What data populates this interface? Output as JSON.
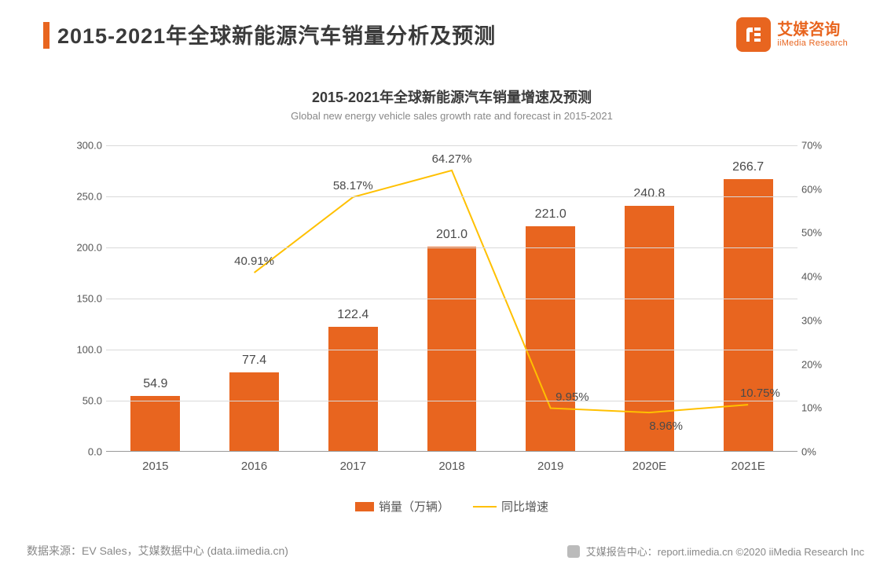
{
  "header": {
    "title": "2015-2021年全球新能源汽车销量分析及预测",
    "logo_cn": "艾媒咨询",
    "logo_en": "iiMedia Research"
  },
  "chart": {
    "type": "bar+line",
    "title": "2015-2021年全球新能源汽车销量增速及预测",
    "subtitle": "Global new energy vehicle sales growth rate and forecast in 2015-2021",
    "categories": [
      "2015",
      "2016",
      "2017",
      "2018",
      "2019",
      "2020E",
      "2021E"
    ],
    "bar_series": {
      "label": "销量（万辆）",
      "values": [
        54.9,
        77.4,
        122.4,
        201.0,
        221.0,
        240.8,
        266.7
      ],
      "value_labels": [
        "54.9",
        "77.4",
        "122.4",
        "201.0",
        "221.0",
        "240.8",
        "266.7"
      ],
      "color": "#e8651f"
    },
    "line_series": {
      "label": "同比增速",
      "values": [
        null,
        40.91,
        58.17,
        64.27,
        9.95,
        8.96,
        10.75
      ],
      "value_labels": [
        null,
        "40.91%",
        "58.17%",
        "64.27%",
        "9.95%",
        "8.96%",
        "10.75%"
      ],
      "color": "#ffc000",
      "stroke_width": 2
    },
    "left_axis": {
      "min": 0,
      "max": 300,
      "step": 50,
      "tick_labels": [
        "0.0",
        "50.0",
        "100.0",
        "150.0",
        "200.0",
        "250.0",
        "300.0"
      ]
    },
    "right_axis": {
      "min": 0,
      "max": 70,
      "step": 10,
      "tick_labels": [
        "0%",
        "10%",
        "20%",
        "30%",
        "40%",
        "50%",
        "60%",
        "70%"
      ]
    },
    "bar_width_ratio": 0.5,
    "background_color": "#ffffff",
    "grid_color": "#d9d9d9",
    "text_color": "#555555",
    "label_fontsize": 15
  },
  "footer": {
    "source": "数据来源：EV Sales，艾媒数据中心 (data.iimedia.cn)",
    "right": "艾媒报告中心：report.iimedia.cn   ©2020  iiMedia Research  Inc"
  }
}
